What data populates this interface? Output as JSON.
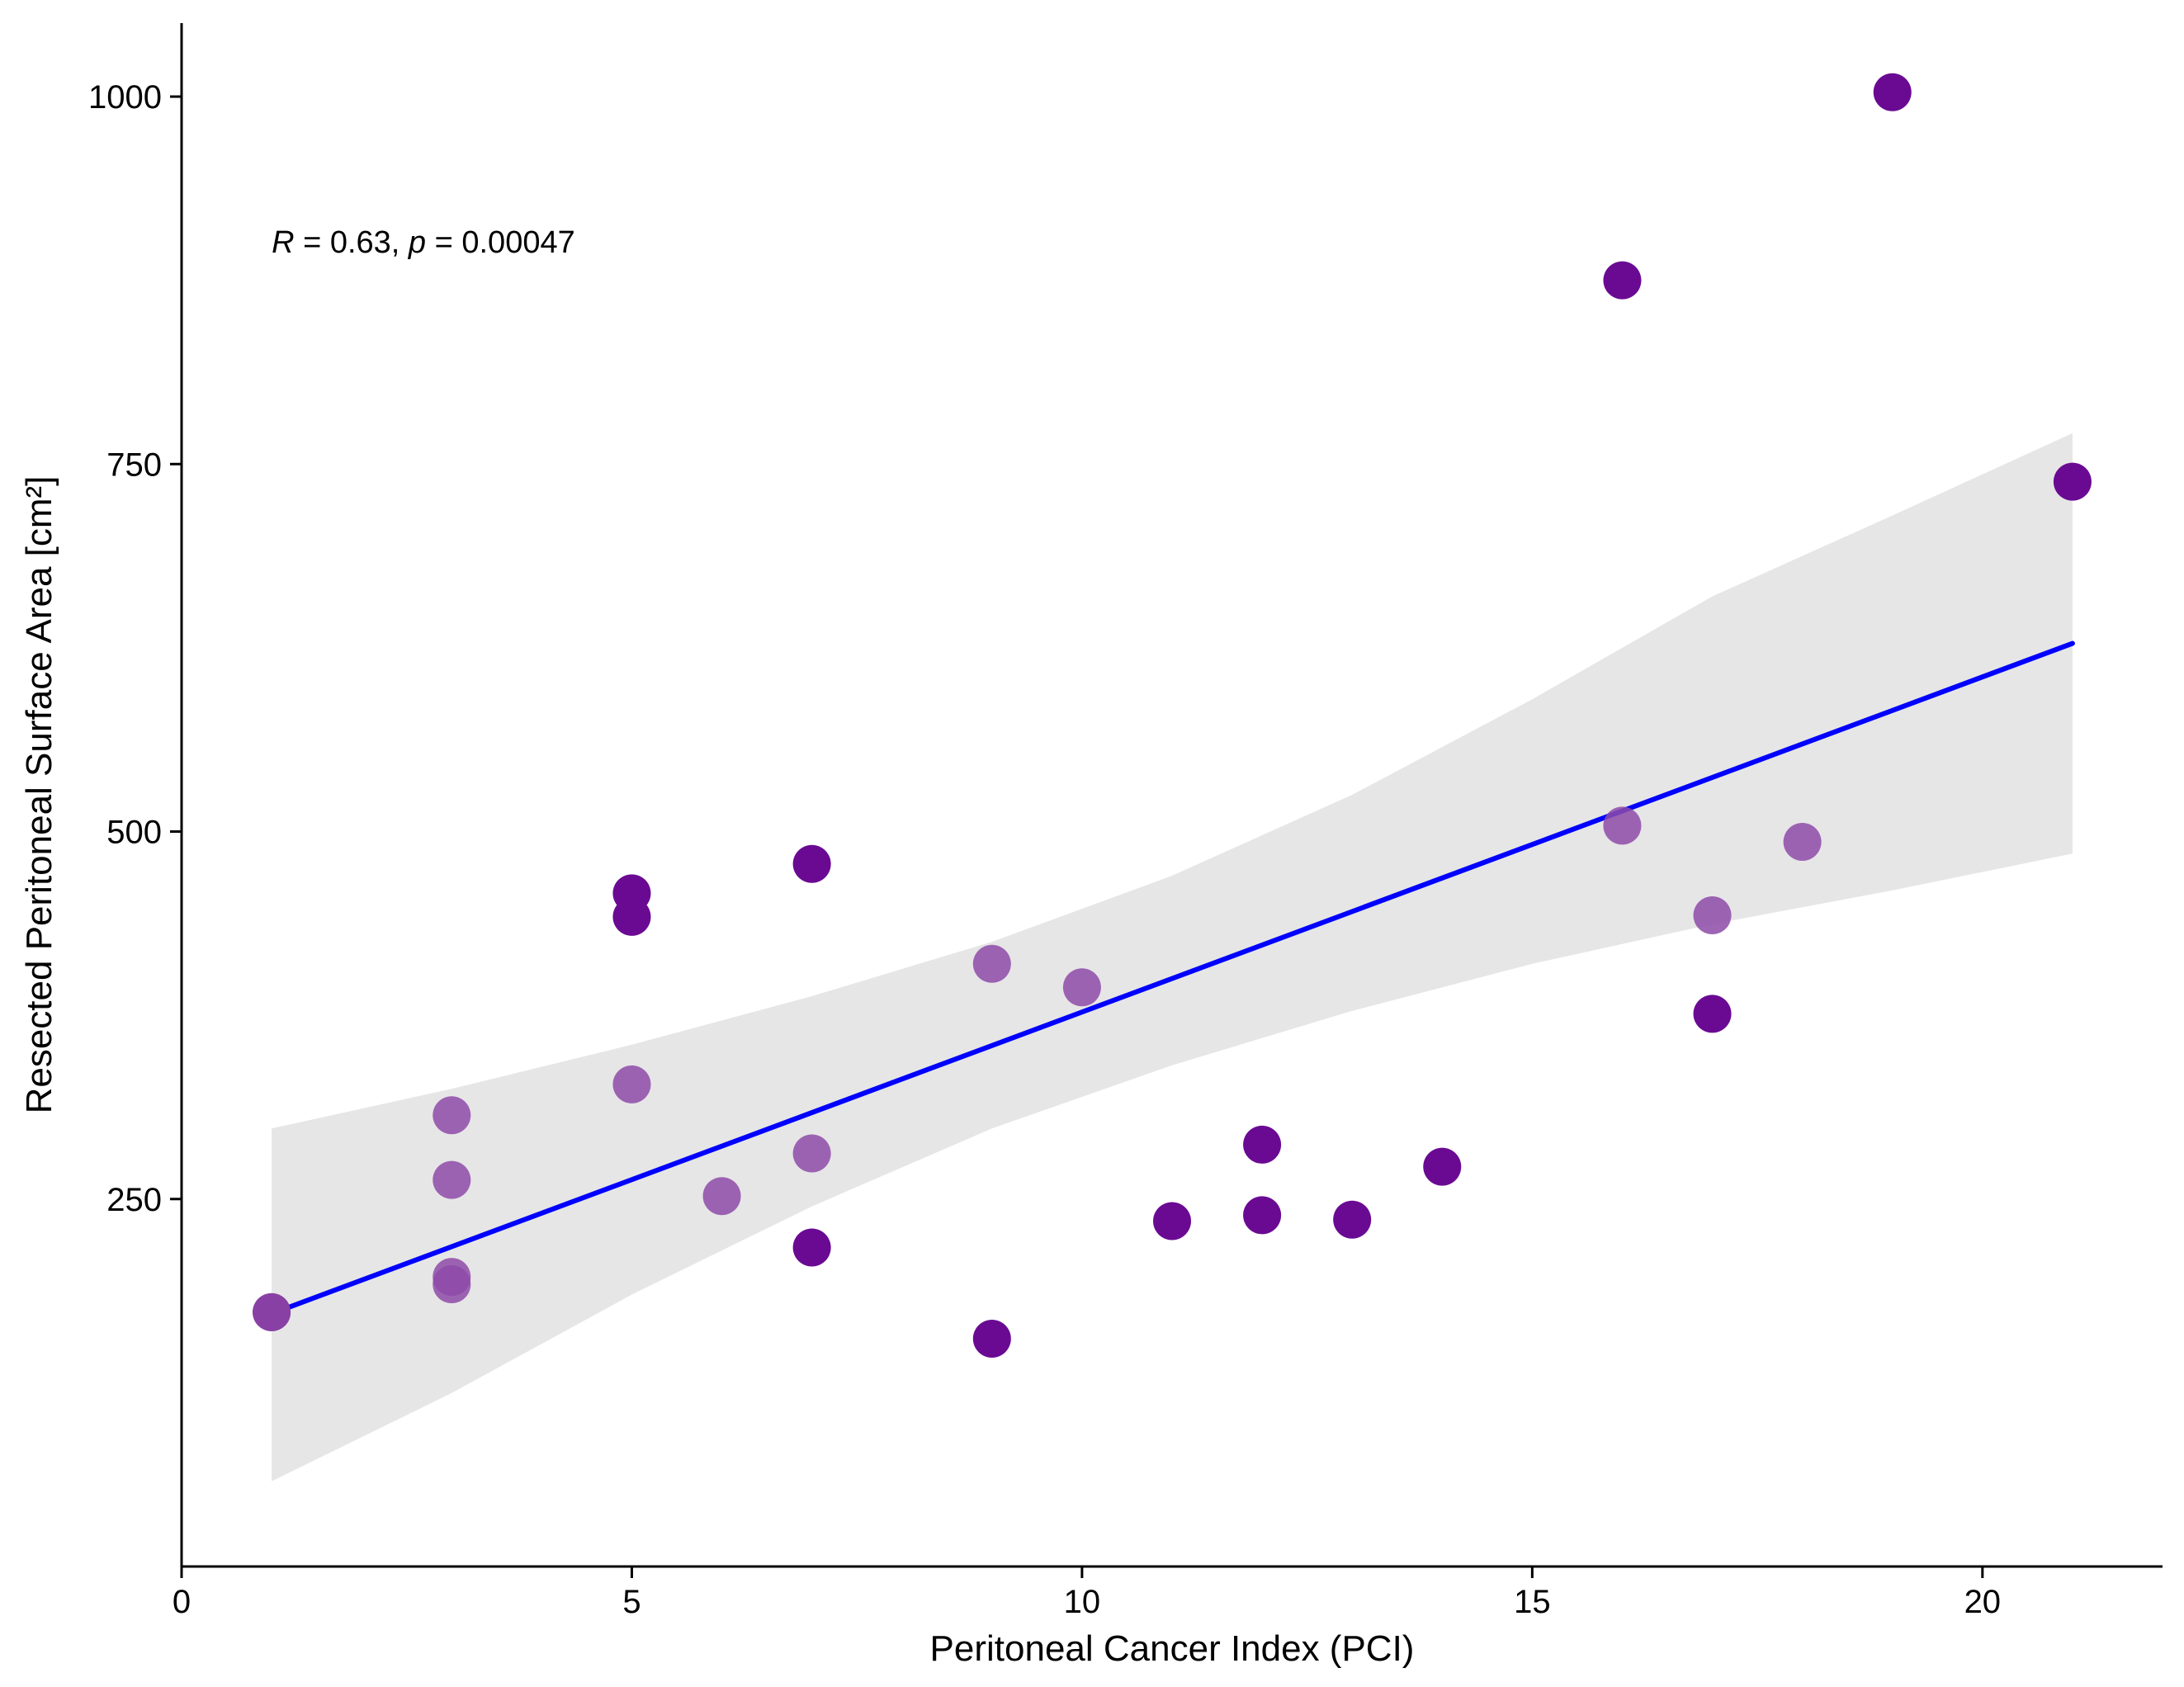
{
  "chart_data": {
    "type": "scatter",
    "title": "",
    "xlabel": "Peritoneal Cancer Index (PCI)",
    "ylabel": "Resected Peritoneal Surface Area [cm²]",
    "xlim": [
      0,
      22
    ],
    "ylim": [
      0,
      1050
    ],
    "xticks": [
      0,
      5,
      10,
      15,
      20
    ],
    "yticks": [
      250,
      500,
      750,
      1000
    ],
    "grid": false,
    "annotation": {
      "r_label": "R",
      "r_text": " = 0.63, ",
      "p_label": "p",
      "p_text": " = 0.00047"
    },
    "colors": {
      "point_dark": "#6a0a93",
      "point_light": "#8e4aa8",
      "line": "#0000ff",
      "band": "#e6e6e6",
      "axis": "#000000"
    },
    "regression": {
      "x": [
        1,
        21
      ],
      "y": [
        172,
        628
      ],
      "band_x": [
        1,
        3,
        5,
        7,
        9,
        11,
        13,
        15,
        17,
        19,
        21
      ],
      "band_lower": [
        58,
        118,
        185,
        245,
        298,
        341,
        378,
        410,
        437,
        460,
        485
      ],
      "band_upper": [
        298,
        325,
        355,
        388,
        425,
        470,
        525,
        590,
        660,
        715,
        771
      ]
    },
    "series": [
      {
        "name": "dark",
        "points": [
          [
            1,
            173
          ],
          [
            5,
            458
          ],
          [
            5,
            442
          ],
          [
            7,
            478
          ],
          [
            7,
            217
          ],
          [
            9,
            155
          ],
          [
            11,
            235
          ],
          [
            12,
            287
          ],
          [
            12,
            239
          ],
          [
            13,
            236
          ],
          [
            14,
            272
          ],
          [
            16,
            875
          ],
          [
            17,
            376
          ],
          [
            19,
            1003
          ],
          [
            21,
            738
          ]
        ]
      },
      {
        "name": "light",
        "points": [
          [
            1,
            173
          ],
          [
            3,
            307
          ],
          [
            3,
            263
          ],
          [
            3,
            197
          ],
          [
            3,
            192
          ],
          [
            5,
            328
          ],
          [
            6,
            252
          ],
          [
            7,
            281
          ],
          [
            9,
            410
          ],
          [
            10,
            394
          ],
          [
            16,
            504
          ],
          [
            17,
            443
          ],
          [
            18,
            493
          ]
        ]
      }
    ]
  }
}
